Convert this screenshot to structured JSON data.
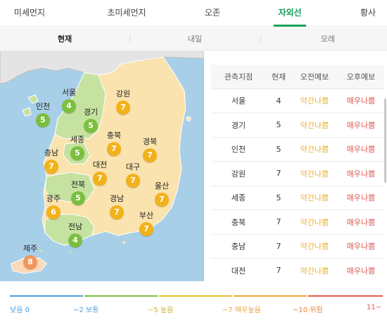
{
  "top_tabs": [
    {
      "label": "미세먼지",
      "active": false
    },
    {
      "label": "초미세먼지",
      "active": false
    },
    {
      "label": "오존",
      "active": false
    },
    {
      "label": "자외선",
      "active": true
    },
    {
      "label": "황사",
      "active": false
    }
  ],
  "sub_tabs": [
    {
      "label": "현재",
      "active": true
    },
    {
      "label": "내일",
      "active": false
    },
    {
      "label": "모레",
      "active": false
    }
  ],
  "map": {
    "regions": [
      {
        "name": "서울",
        "value": "4",
        "color": "#7cbf3f"
      },
      {
        "name": "강원",
        "value": "7",
        "color": "#f2b21b"
      },
      {
        "name": "인천",
        "value": "5",
        "color": "#7cbf3f"
      },
      {
        "name": "경기",
        "value": "5",
        "color": "#7cbf3f"
      },
      {
        "name": "세종",
        "value": "5",
        "color": "#7cbf3f"
      },
      {
        "name": "충북",
        "value": "7",
        "color": "#f2b21b"
      },
      {
        "name": "경북",
        "value": "7",
        "color": "#f2b21b"
      },
      {
        "name": "충남",
        "value": "7",
        "color": "#f2b21b"
      },
      {
        "name": "대전",
        "value": "7",
        "color": "#f2b21b"
      },
      {
        "name": "대구",
        "value": "7",
        "color": "#f2b21b"
      },
      {
        "name": "전북",
        "value": "5",
        "color": "#7cbf3f"
      },
      {
        "name": "울산",
        "value": "7",
        "color": "#f2b21b"
      },
      {
        "name": "광주",
        "value": "6",
        "color": "#f2b21b"
      },
      {
        "name": "경남",
        "value": "7",
        "color": "#f2b21b"
      },
      {
        "name": "부산",
        "value": "7",
        "color": "#f2b21b"
      },
      {
        "name": "전남",
        "value": "4",
        "color": "#7cbf3f"
      },
      {
        "name": "제주",
        "value": "8",
        "color": "#f0965a"
      }
    ]
  },
  "table": {
    "headers": [
      "관측지점",
      "현재",
      "오전예보",
      "오후예보"
    ],
    "rows": [
      {
        "site": "서울",
        "now": "4",
        "am": "약간나쁨",
        "pm": "매우나쁨"
      },
      {
        "site": "경기",
        "now": "5",
        "am": "약간나쁨",
        "pm": "매우나쁨"
      },
      {
        "site": "인천",
        "now": "5",
        "am": "약간나쁨",
        "pm": "매우나쁨"
      },
      {
        "site": "강원",
        "now": "7",
        "am": "약간나쁨",
        "pm": "매우나쁨"
      },
      {
        "site": "세종",
        "now": "5",
        "am": "약간나쁨",
        "pm": "매우나쁨"
      },
      {
        "site": "충북",
        "now": "7",
        "am": "약간나쁨",
        "pm": "매우나쁨"
      },
      {
        "site": "충남",
        "now": "7",
        "am": "약간나쁨",
        "pm": "매우나쁨"
      },
      {
        "site": "대전",
        "now": "7",
        "am": "약간나쁨",
        "pm": "매우나쁨"
      }
    ]
  },
  "legend": [
    {
      "label": "낮음 0",
      "color": "#4a9fe0"
    },
    {
      "label": "~2 보통",
      "color": "#7cbf3f"
    },
    {
      "label": "~5 높음",
      "color": "#e6c22e"
    },
    {
      "label": "~7 매우높음",
      "color": "#f0a63a"
    },
    {
      "label": "~10 위험",
      "color": "#e8823a"
    },
    {
      "label": "11~",
      "color": "#e25a52"
    }
  ]
}
